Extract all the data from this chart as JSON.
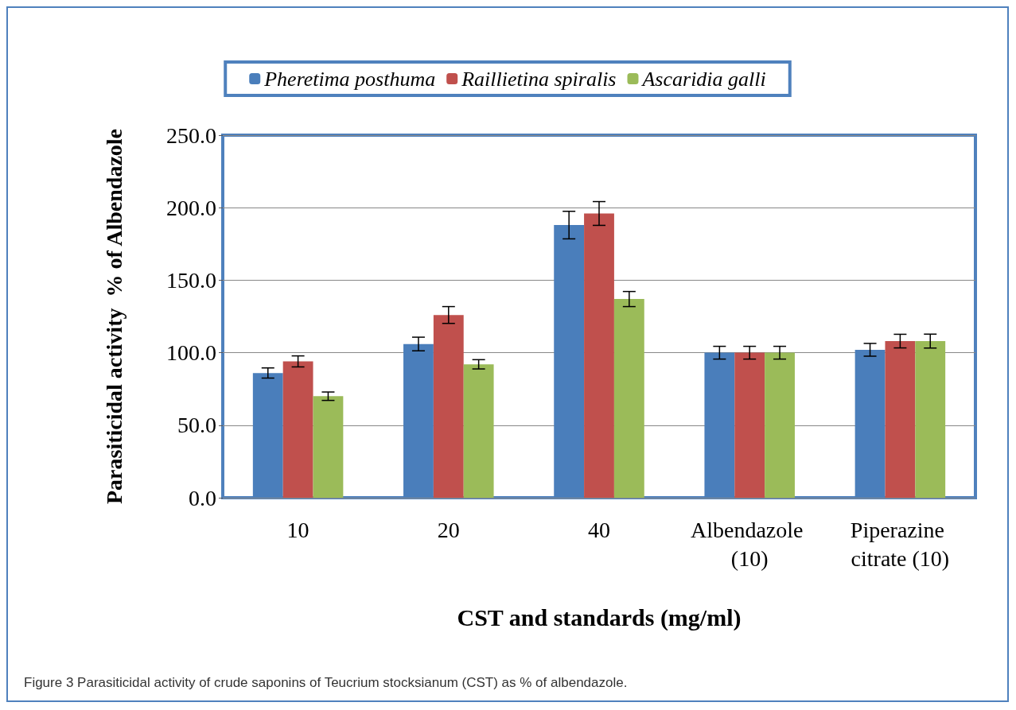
{
  "chart_data": {
    "type": "bar",
    "xlabel": "CST and standards (mg/ml)",
    "ylabel": "Parasiticidal activity  % of Albendazole",
    "categories": [
      "10",
      "20",
      "40",
      "Albendazole (10)",
      "Piperazine citrate (10)"
    ],
    "series": [
      {
        "name": "Pheretima posthuma",
        "color": "#4a7ebb",
        "values": [
          86,
          106,
          188,
          100,
          102
        ],
        "errors": [
          3.5,
          4.7,
          9.5,
          4.4,
          4.4
        ]
      },
      {
        "name": "Raillietina spiralis",
        "color": "#c0504d",
        "values": [
          94,
          126,
          196,
          100,
          108
        ],
        "errors": [
          3.8,
          5.8,
          8.2,
          4.4,
          4.7
        ]
      },
      {
        "name": "Ascaridia galli",
        "color": "#9bbb59",
        "values": [
          70,
          92,
          137,
          100,
          108
        ],
        "errors": [
          2.9,
          3.2,
          5.2,
          4.4,
          4.8
        ]
      }
    ],
    "ylim": [
      0,
      250
    ],
    "yticks": [
      {
        "value": 0,
        "label": "0.0"
      },
      {
        "value": 50,
        "label": "50.0"
      },
      {
        "value": 100,
        "label": "100.0"
      },
      {
        "value": 150,
        "label": "150.0"
      },
      {
        "value": 200,
        "label": "200.0"
      },
      {
        "value": 250,
        "label": "250.0"
      }
    ],
    "grid": "y",
    "legend": "top",
    "annotations": [
      "Figure 3 Parasiticidal activity of crude saponins of Teucrium stocksianum (CST) as % of albendazole."
    ]
  }
}
